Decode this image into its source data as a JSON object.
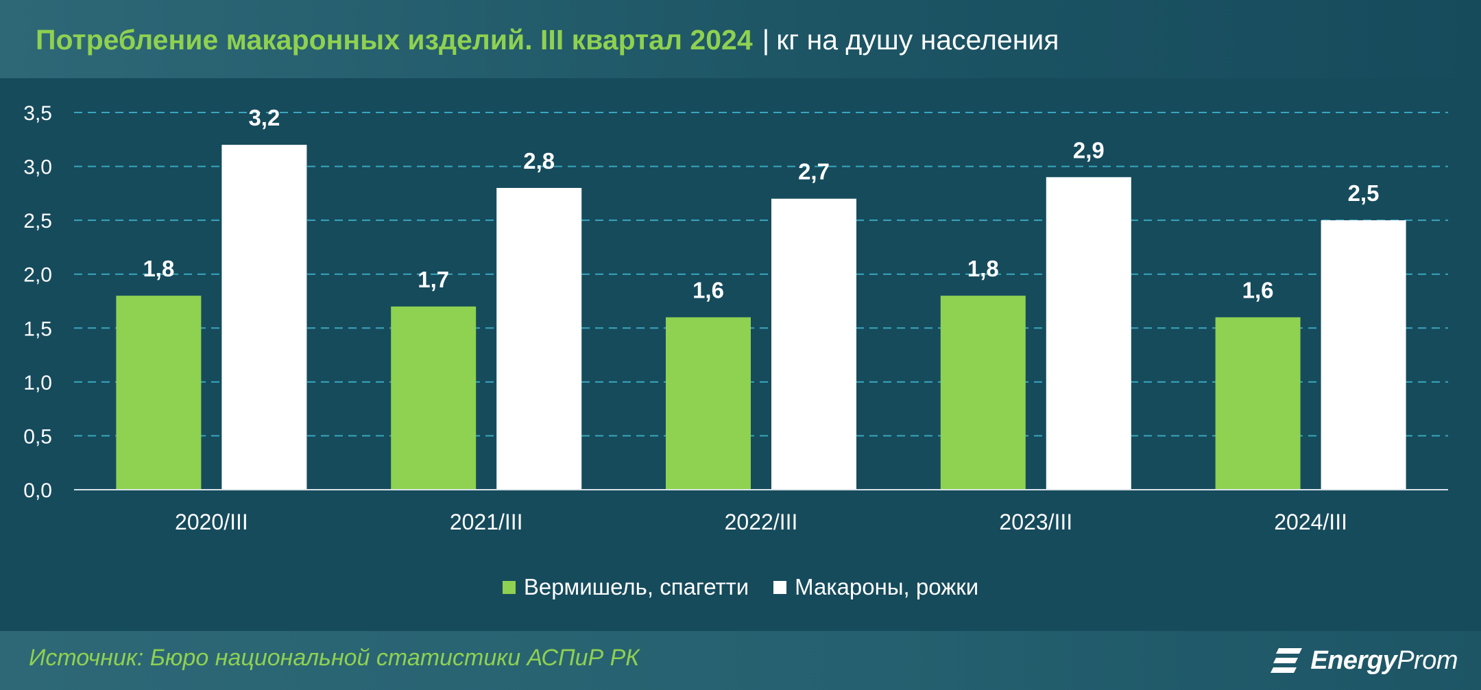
{
  "header": {
    "title": "Потребление макаронных изделий. III квартал 2024",
    "separator": "|",
    "unit": "кг на душу населения"
  },
  "colors": {
    "background": "#164b5c",
    "series_green": "#8fd150",
    "series_white": "#ffffff",
    "gridline": "#3aa6bd",
    "title_accent": "#8fd150"
  },
  "chart_data": {
    "type": "bar",
    "categories": [
      "2020/III",
      "2021/III",
      "2022/III",
      "2023/III",
      "2024/III"
    ],
    "series": [
      {
        "name": "Вермишель, спагетти",
        "color": "#8fd150",
        "values": [
          1.8,
          1.7,
          1.6,
          1.8,
          1.6
        ],
        "labels": [
          "1,8",
          "1,7",
          "1,6",
          "1,8",
          "1,6"
        ]
      },
      {
        "name": "Макароны, рожки",
        "color": "#ffffff",
        "values": [
          3.2,
          2.8,
          2.7,
          2.9,
          2.5
        ],
        "labels": [
          "3,2",
          "2,8",
          "2,7",
          "2,9",
          "2,5"
        ]
      }
    ],
    "yticks": [
      0,
      0.5,
      1.0,
      1.5,
      2.0,
      2.5,
      3.0,
      3.5
    ],
    "ytick_labels": [
      "0,0",
      "0,5",
      "1,0",
      "1,5",
      "2,0",
      "2,5",
      "3,0",
      "3,5"
    ],
    "ylim": [
      0,
      3.5
    ],
    "grid": true,
    "legend_position": "bottom"
  },
  "footer": {
    "source": "Источник: Бюро национальной статистики АСПиР РК",
    "brand_bold": "Energy",
    "brand_light": "Prom"
  }
}
